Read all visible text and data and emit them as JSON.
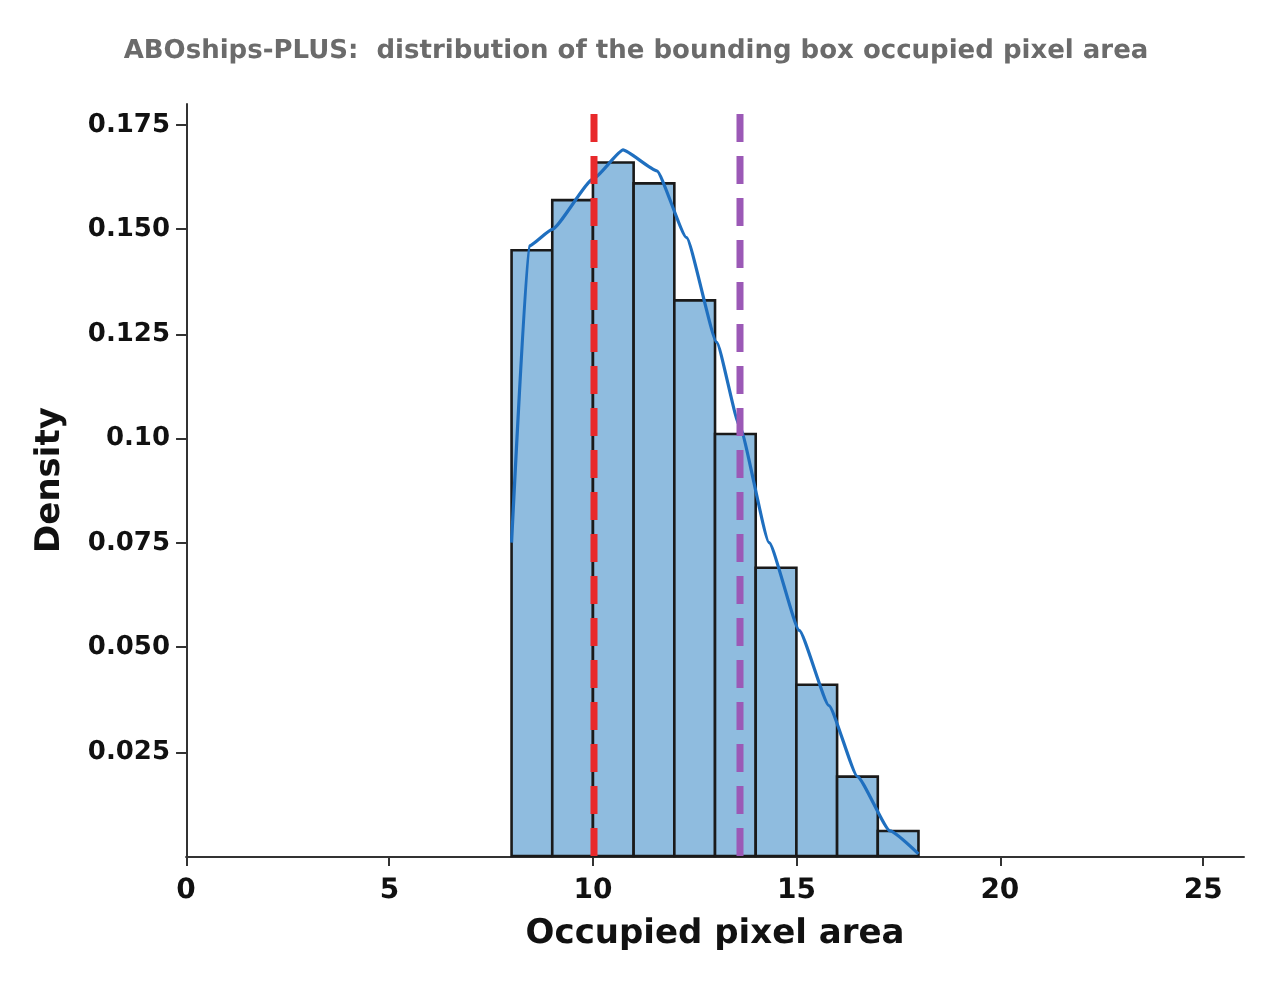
{
  "chart_data": {
    "type": "histogram",
    "title": "ABOships-PLUS:  distribution of the bounding box occupied pixel area",
    "xlabel": "Occupied pixel area",
    "ylabel": "Density",
    "bins": [
      8,
      9,
      10,
      11,
      12,
      13,
      14,
      15,
      16,
      17,
      18
    ],
    "values": [
      0.145,
      0.157,
      0.166,
      0.161,
      0.133,
      0.101,
      0.069,
      0.041,
      0.019,
      0.006
    ],
    "color": "#8fbcdf",
    "series": [
      {
        "type": "line",
        "color": "#1f6fbf",
        "x": [
          8,
          8.43,
          9.0,
          10.0,
          10.74,
          11.57,
          12.3,
          13.04,
          13.6,
          14.33,
          15.07,
          15.8,
          16.5,
          17.3,
          18.0
        ],
        "values": [
          0.075,
          0.146,
          0.15,
          0.162,
          0.169,
          0.164,
          0.148,
          0.123,
          0.103,
          0.075,
          0.054,
          0.036,
          0.019,
          0.006,
          0.0005
        ]
      }
    ],
    "xlim": [
      0,
      26
    ],
    "xticks": [
      0,
      5,
      10,
      15,
      20,
      25
    ],
    "ylim": [
      0,
      0.18
    ],
    "yticks": [
      {
        "value": 0.025,
        "label": "0.025"
      },
      {
        "value": 0.05,
        "label": "0.050"
      },
      {
        "value": 0.075,
        "label": "0.075"
      },
      {
        "value": 0.1,
        "label": "0.10"
      },
      {
        "value": 0.125,
        "label": "0.125"
      },
      {
        "value": 0.15,
        "label": "0.150"
      },
      {
        "value": 0.175,
        "label": "0.175"
      }
    ],
    "ref_lines": [
      {
        "axis": "x",
        "value": 10,
        "color": "#e8292b",
        "line_style": "dashed"
      },
      {
        "axis": "x",
        "value": 13.6,
        "color": "#9b59b6",
        "line_style": "dashed"
      }
    ],
    "grid": false
  }
}
